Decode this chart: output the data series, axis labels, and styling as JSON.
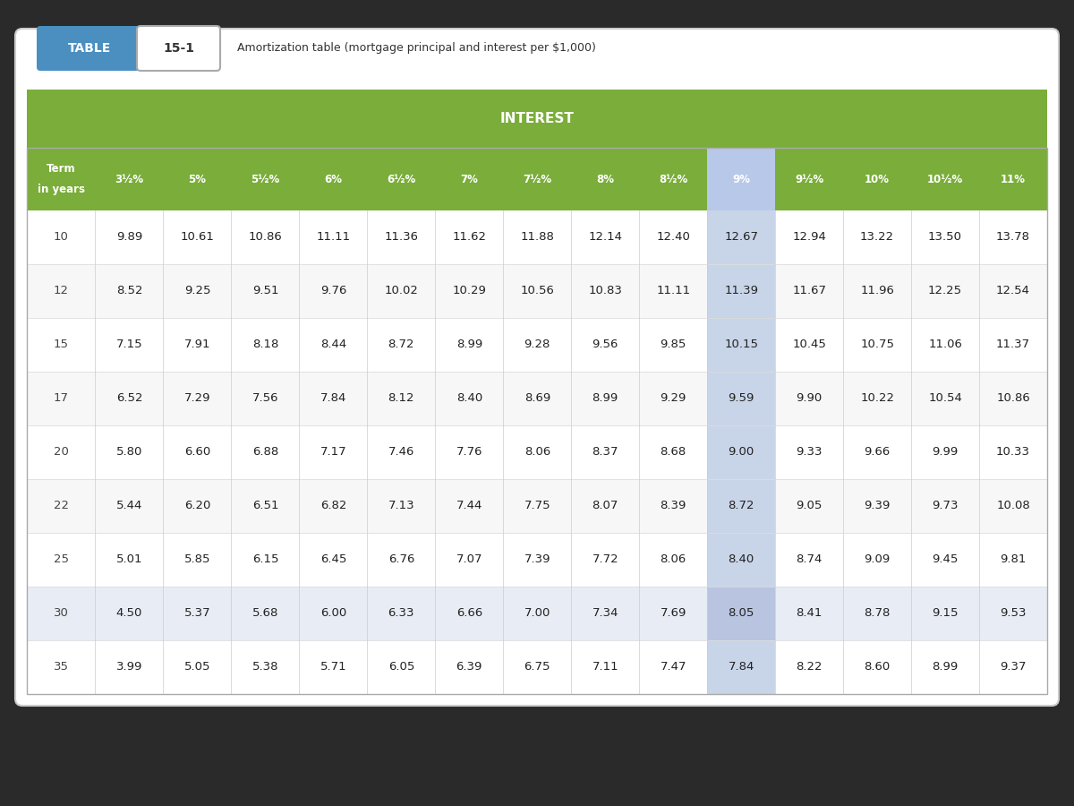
{
  "title_table": "TABLE",
  "title_num": "15-1",
  "subtitle": "Amortization table (mortgage principal and interest per $1,000)",
  "interest_label": "INTEREST",
  "col_headers": [
    "Term\nin years",
    "3½%",
    "5%",
    "5½%",
    "6%",
    "6½%",
    "7%",
    "7½%",
    "8%",
    "8½%",
    "9%",
    "9½%",
    "10%",
    "10½%",
    "11%"
  ],
  "rows": [
    [
      10,
      9.89,
      10.61,
      10.86,
      11.11,
      11.36,
      11.62,
      11.88,
      12.14,
      12.4,
      12.67,
      12.94,
      13.22,
      13.5,
      13.78
    ],
    [
      12,
      8.52,
      9.25,
      9.51,
      9.76,
      10.02,
      10.29,
      10.56,
      10.83,
      11.11,
      11.39,
      11.67,
      11.96,
      12.25,
      12.54
    ],
    [
      15,
      7.15,
      7.91,
      8.18,
      8.44,
      8.72,
      8.99,
      9.28,
      9.56,
      9.85,
      10.15,
      10.45,
      10.75,
      11.06,
      11.37
    ],
    [
      17,
      6.52,
      7.29,
      7.56,
      7.84,
      8.12,
      8.4,
      8.69,
      8.99,
      9.29,
      9.59,
      9.9,
      10.22,
      10.54,
      10.86
    ],
    [
      20,
      5.8,
      6.6,
      6.88,
      7.17,
      7.46,
      7.76,
      8.06,
      8.37,
      8.68,
      9.0,
      9.33,
      9.66,
      9.99,
      10.33
    ],
    [
      22,
      5.44,
      6.2,
      6.51,
      6.82,
      7.13,
      7.44,
      7.75,
      8.07,
      8.39,
      8.72,
      9.05,
      9.39,
      9.73,
      10.08
    ],
    [
      25,
      5.01,
      5.85,
      6.15,
      6.45,
      6.76,
      7.07,
      7.39,
      7.72,
      8.06,
      8.4,
      8.74,
      9.09,
      9.45,
      9.81
    ],
    [
      30,
      4.5,
      5.37,
      5.68,
      6.0,
      6.33,
      6.66,
      7.0,
      7.34,
      7.69,
      8.05,
      8.41,
      8.78,
      9.15,
      9.53
    ],
    [
      35,
      3.99,
      5.05,
      5.38,
      5.71,
      6.05,
      6.39,
      6.75,
      7.11,
      7.47,
      7.84,
      8.22,
      8.6,
      8.99,
      9.37
    ]
  ],
  "highlight_col": 10,
  "highlight_row": 7,
  "bg_color": "#f0f0f0",
  "header_green": "#7aad3a",
  "header_dark_green": "#6b9e30",
  "table_bg": "#ffffff",
  "row_alt": "#f5f5f5",
  "highlight_col_color": "#d0d8f0",
  "highlight_row_color": "#e8e8e8",
  "table_blue": "#4a8fc0",
  "border_color": "#cccccc",
  "outer_bg": "#2a2a2a"
}
